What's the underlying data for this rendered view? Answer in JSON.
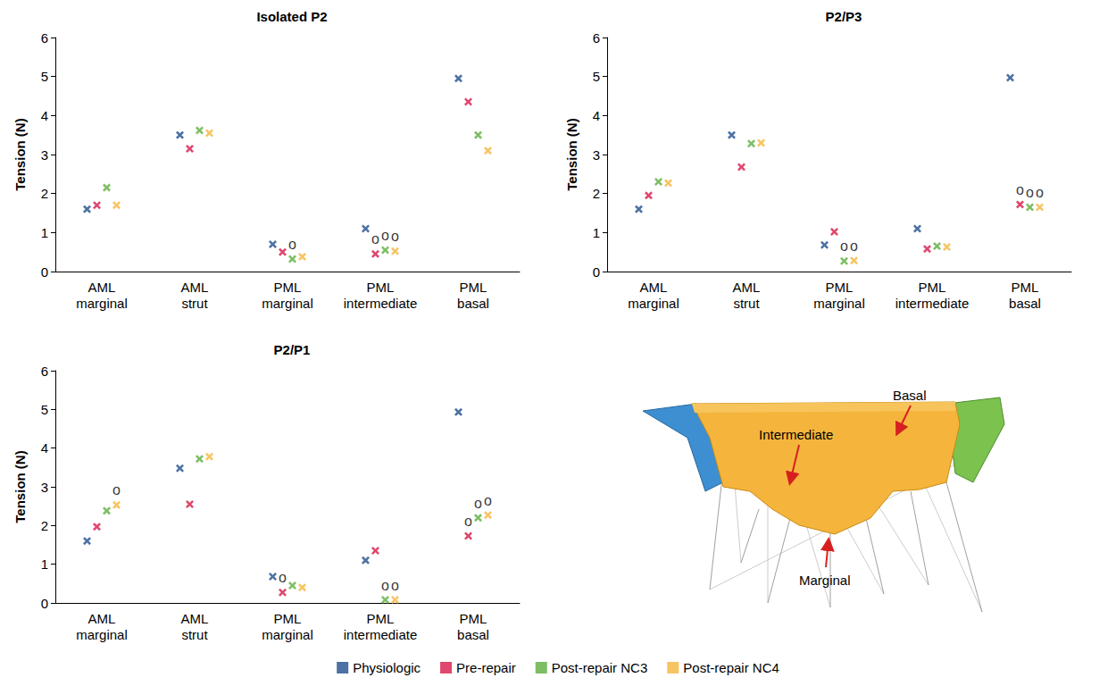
{
  "chart_data": [
    {
      "type": "scatter",
      "title": "Isolated P2",
      "categories": [
        "AML marginal",
        "AML strut",
        "PML marginal",
        "PML intermediate",
        "PML basal"
      ],
      "series": [
        {
          "name": "Physiologic",
          "color": "#1f4e8c",
          "marker": "x",
          "values": [
            1.6,
            3.5,
            0.7,
            1.1,
            4.95
          ]
        },
        {
          "name": "Pre-repair",
          "color": "#d7194a",
          "marker": "x",
          "values": [
            1.7,
            3.15,
            0.5,
            0.45,
            4.35
          ]
        },
        {
          "name": "Post-repair NC3",
          "color": "#5cae3c",
          "marker": "x",
          "values": [
            2.15,
            3.62,
            0.32,
            0.55,
            3.5
          ]
        },
        {
          "name": "Post-repair NC4",
          "color": "#f5b53c",
          "marker": "x",
          "values": [
            1.7,
            3.55,
            0.38,
            0.52,
            3.1
          ]
        }
      ],
      "ylim": [
        0,
        6
      ],
      "yticks": [
        0,
        1,
        2,
        3,
        4,
        5,
        6
      ],
      "y_label": "Tension (N)",
      "grid": false,
      "legend": "bottom",
      "annotations": [
        {
          "text": "o",
          "series": "Post-repair NC3",
          "category": "PML marginal"
        },
        {
          "text": "o",
          "series": "Pre-repair",
          "category": "PML intermediate"
        },
        {
          "text": "o",
          "series": "Post-repair NC3",
          "category": "PML intermediate"
        },
        {
          "text": "o",
          "series": "Post-repair NC4",
          "category": "PML intermediate"
        }
      ]
    },
    {
      "type": "scatter",
      "title": "P2/P3",
      "categories": [
        "AML marginal",
        "AML strut",
        "PML marginal",
        "PML intermediate",
        "PML basal"
      ],
      "series": [
        {
          "name": "Physiologic",
          "color": "#1f4e8c",
          "marker": "x",
          "values": [
            1.6,
            3.5,
            0.68,
            1.1,
            4.97
          ]
        },
        {
          "name": "Pre-repair",
          "color": "#d7194a",
          "marker": "x",
          "values": [
            1.95,
            2.68,
            1.02,
            0.58,
            1.72
          ]
        },
        {
          "name": "Post-repair NC3",
          "color": "#5cae3c",
          "marker": "x",
          "values": [
            2.3,
            3.28,
            0.27,
            0.65,
            1.65
          ]
        },
        {
          "name": "Post-repair NC4",
          "color": "#f5b53c",
          "marker": "x",
          "values": [
            2.27,
            3.3,
            0.28,
            0.63,
            1.65
          ]
        }
      ],
      "ylim": [
        0,
        6
      ],
      "yticks": [
        0,
        1,
        2,
        3,
        4,
        5,
        6
      ],
      "y_label": "Tension (N)",
      "grid": false,
      "legend": "bottom",
      "annotations": [
        {
          "text": "o",
          "series": "Post-repair NC3",
          "category": "PML marginal"
        },
        {
          "text": "o",
          "series": "Post-repair NC4",
          "category": "PML marginal"
        },
        {
          "text": "o",
          "series": "Pre-repair",
          "category": "PML basal"
        },
        {
          "text": "o",
          "series": "Post-repair NC3",
          "category": "PML basal"
        },
        {
          "text": "o",
          "series": "Post-repair NC4",
          "category": "PML basal"
        }
      ]
    },
    {
      "type": "scatter",
      "title": "P2/P1",
      "categories": [
        "AML marginal",
        "AML strut",
        "PML marginal",
        "PML intermediate",
        "PML basal"
      ],
      "series": [
        {
          "name": "Physiologic",
          "color": "#1f4e8c",
          "marker": "x",
          "values": [
            1.6,
            3.48,
            0.68,
            1.1,
            4.93
          ]
        },
        {
          "name": "Pre-repair",
          "color": "#d7194a",
          "marker": "x",
          "values": [
            1.97,
            2.55,
            0.27,
            1.35,
            1.73
          ]
        },
        {
          "name": "Post-repair NC3",
          "color": "#5cae3c",
          "marker": "x",
          "values": [
            2.38,
            3.72,
            0.45,
            0.08,
            2.2
          ]
        },
        {
          "name": "Post-repair NC4",
          "color": "#f5b53c",
          "marker": "x",
          "values": [
            2.53,
            3.78,
            0.4,
            0.08,
            2.27
          ]
        }
      ],
      "ylim": [
        0,
        6
      ],
      "yticks": [
        0,
        1,
        2,
        3,
        4,
        5,
        6
      ],
      "y_label": "Tension (N)",
      "grid": false,
      "legend": "bottom",
      "annotations": [
        {
          "text": "o",
          "series": "Post-repair NC4",
          "category": "AML marginal"
        },
        {
          "text": "o",
          "series": "Pre-repair",
          "category": "PML marginal"
        },
        {
          "text": "o",
          "series": "Post-repair NC3",
          "category": "PML intermediate"
        },
        {
          "text": "o",
          "series": "Post-repair NC4",
          "category": "PML intermediate"
        },
        {
          "text": "o",
          "series": "Pre-repair",
          "category": "PML basal"
        },
        {
          "text": "o",
          "series": "Post-repair NC3",
          "category": "PML basal"
        },
        {
          "text": "o",
          "series": "Post-repair NC4",
          "category": "PML basal"
        }
      ]
    }
  ],
  "diagram": {
    "labels": {
      "basal": "Basal",
      "intermediate": "Intermediate",
      "marginal": "Marginal"
    }
  }
}
